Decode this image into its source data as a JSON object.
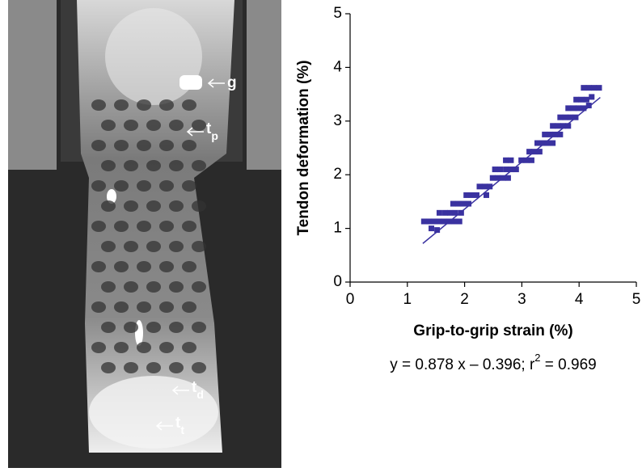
{
  "photo_labels": [
    {
      "main": "g"
    },
    {
      "main": "t",
      "sub": "p"
    },
    {
      "main": "t",
      "sub": "d"
    },
    {
      "main": "t",
      "sub": "t"
    }
  ],
  "chart_data": {
    "type": "scatter",
    "x_label": "Grip-to-grip strain  (%)",
    "y_label": "Tendon deformation (%)",
    "equation": {
      "before": "y = 0.878 x – 0.396; r",
      "sup": "2",
      "after": " = 0.969"
    },
    "trendline": {
      "slope": 0.878,
      "intercept": -0.396,
      "x": [
        1.27,
        4.37
      ],
      "color": "#3a32a0"
    },
    "xlim": [
      0,
      5
    ],
    "ylim": [
      0,
      5
    ],
    "xticks": [
      0,
      1,
      2,
      3,
      4,
      5
    ],
    "yticks": [
      0,
      1,
      2,
      3,
      4,
      5
    ],
    "series": [
      {
        "color": "#3a32a0",
        "x": [
          1.29,
          1.38,
          1.47,
          1.42,
          1.52,
          1.56,
          1.64,
          1.73,
          1.82,
          1.91,
          1.56,
          1.66,
          1.75,
          1.84,
          1.8,
          1.89,
          1.98,
          1.94,
          2.07,
          2.03,
          2.12,
          2.21,
          2.26,
          2.35,
          2.44,
          2.38,
          2.49,
          2.58,
          2.67,
          2.53,
          2.62,
          2.72,
          2.81,
          2.76,
          2.72,
          2.81,
          2.9,
          2.99,
          3.08,
          3.13,
          3.22,
          3.17,
          3.27,
          3.36,
          3.45,
          3.31,
          3.4,
          3.49,
          3.58,
          3.54,
          3.54,
          3.63,
          3.72,
          3.67,
          3.67,
          3.76,
          3.85,
          3.81,
          3.81,
          3.9,
          3.99,
          3.94,
          3.95,
          4.04,
          4.13,
          4.08,
          4.17,
          4.08,
          4.17,
          4.26,
          4.35,
          4.22
        ],
        "values": [
          1.13,
          1.13,
          1.13,
          1.0,
          0.97,
          1.13,
          1.13,
          1.13,
          1.13,
          1.13,
          1.29,
          1.29,
          1.29,
          1.29,
          1.46,
          1.46,
          1.46,
          1.29,
          1.46,
          1.62,
          1.62,
          1.62,
          1.78,
          1.78,
          1.78,
          1.62,
          1.94,
          1.94,
          1.94,
          2.1,
          2.1,
          2.1,
          2.1,
          1.94,
          2.27,
          2.27,
          2.1,
          2.27,
          2.27,
          2.43,
          2.43,
          2.27,
          2.59,
          2.59,
          2.59,
          2.43,
          2.75,
          2.75,
          2.75,
          2.59,
          2.91,
          2.91,
          2.91,
          2.75,
          3.07,
          3.07,
          3.07,
          2.91,
          3.24,
          3.24,
          3.24,
          3.07,
          3.4,
          3.4,
          3.4,
          3.24,
          3.29,
          3.62,
          3.62,
          3.62,
          3.62,
          3.45
        ]
      }
    ]
  }
}
